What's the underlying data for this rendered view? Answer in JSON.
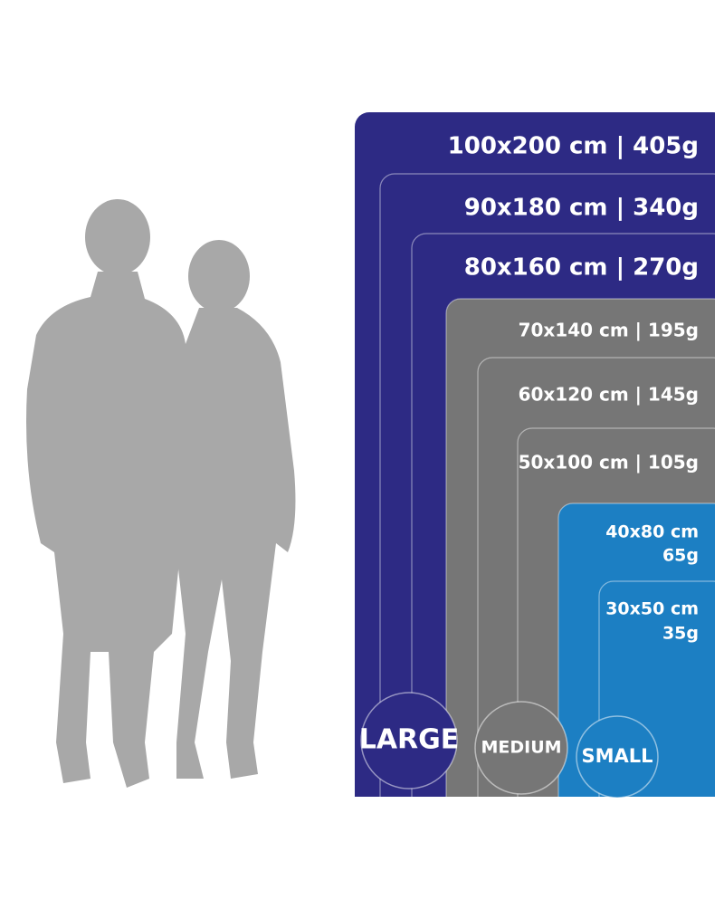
{
  "sizes": [
    {
      "group": 0,
      "lines": [
        "100x200 cm | 405g"
      ]
    },
    {
      "group": 0,
      "lines": [
        "90x180 cm | 340g"
      ]
    },
    {
      "group": 0,
      "lines": [
        "80x160 cm | 270g"
      ]
    },
    {
      "group": 1,
      "lines": [
        "70x140 cm | 195g"
      ]
    },
    {
      "group": 1,
      "lines": [
        "60x120 cm | 145g"
      ]
    },
    {
      "group": 1,
      "lines": [
        "50x100 cm | 105g"
      ]
    },
    {
      "group": 2,
      "lines": [
        "40x80 cm",
        "65g"
      ]
    },
    {
      "group": 2,
      "lines": [
        "30x50 cm",
        "35g"
      ]
    }
  ],
  "groups": [
    "LARGE",
    "MEDIUM",
    "SMALL"
  ]
}
